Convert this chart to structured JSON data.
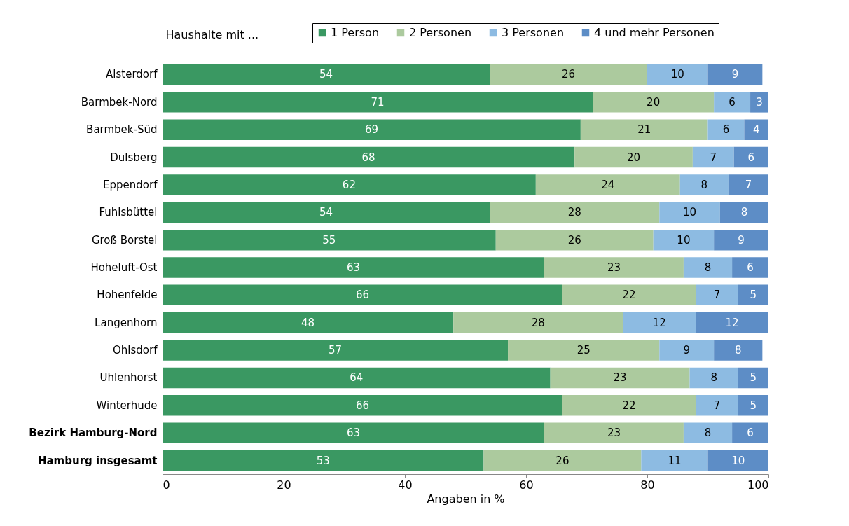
{
  "chart_data": {
    "type": "bar",
    "orientation": "horizontal",
    "stacked": true,
    "ylabel": "Haushalte mit ...",
    "xlabel": "Angaben in %",
    "categories": [
      "Alsterdorf",
      "Barmbek-Nord",
      "Barmbek-Süd",
      "Dulsberg",
      "Eppendorf",
      "Fuhlsbüttel",
      "Groß Borstel",
      "Hoheluft-Ost",
      "Hohenfelde",
      "Langenhorn",
      "Ohlsdorf",
      "Uhlenhorst",
      "Winterhude",
      "Bezirk Hamburg-Nord",
      "Hamburg insgesamt"
    ],
    "series": [
      {
        "name": "1 Person",
        "color": "#3a9862",
        "values": [
          54,
          71,
          69,
          68,
          61.6,
          54,
          55,
          63,
          66,
          48,
          57,
          64,
          66,
          63,
          53
        ],
        "value_labels": [
          "54",
          "71",
          "69",
          "68",
          "62",
          "54",
          "55",
          "63",
          "66",
          "48",
          "57",
          "64",
          "66",
          "63",
          "53"
        ]
      },
      {
        "name": "2 Personen",
        "color": "#acca9e",
        "values": [
          26,
          20,
          21,
          19.5,
          23.8,
          28,
          26,
          23,
          22,
          28,
          25,
          23,
          22,
          23,
          26
        ],
        "value_labels": [
          "26",
          "20",
          "21",
          "20",
          "24",
          "28",
          "26",
          "23",
          "22",
          "28",
          "25",
          "23",
          "22",
          "23",
          "26"
        ]
      },
      {
        "name": "3 Personen",
        "color": "#8dbbe2",
        "values": [
          10,
          6,
          6,
          6.8,
          8,
          10,
          10,
          8,
          7,
          12,
          9,
          8,
          7,
          8,
          11
        ],
        "value_labels": [
          "10",
          "6",
          "6",
          "7",
          "8",
          "10",
          "10",
          "8",
          "7",
          "12",
          "9",
          "8",
          "7",
          "8",
          "11"
        ]
      },
      {
        "name": "4 und mehr Personen",
        "color": "#5d8dc6",
        "values": [
          9,
          3,
          4,
          5.7,
          6.6,
          8,
          9,
          6,
          5,
          12,
          8,
          5,
          5,
          6,
          10
        ],
        "value_labels": [
          "9",
          "3",
          "4",
          "6",
          "7",
          "8",
          "9",
          "6",
          "5",
          "12",
          "8",
          "5",
          "5",
          "6",
          "10"
        ]
      }
    ],
    "xlim": [
      0,
      100
    ],
    "xticks": [
      0,
      20,
      40,
      60,
      80,
      100
    ],
    "legend": "top right",
    "grid": false
  }
}
